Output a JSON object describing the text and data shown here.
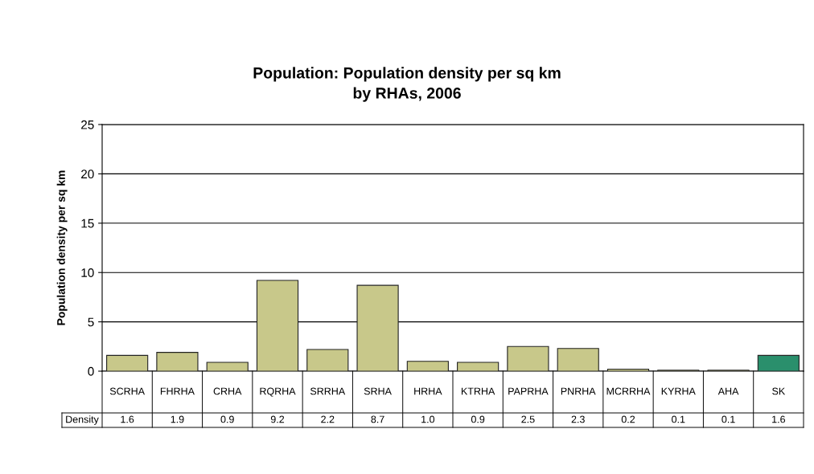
{
  "chart_data": {
    "type": "bar",
    "title": "Population: Population density per sq km\nby RHAs, 2006",
    "ylabel": "Population density per sq km",
    "categories": [
      "SCRHA",
      "FHRHA",
      "CRHA",
      "RQRHA",
      "SRRHA",
      "SRHA",
      "HRHA",
      "KTRHA",
      "PAPRHA",
      "PNRHA",
      "MCRRHA",
      "KYRHA",
      "AHA",
      "SK"
    ],
    "series": [
      {
        "name": "Density",
        "colors": [
          "#c8c88a",
          "#c8c88a",
          "#c8c88a",
          "#c8c88a",
          "#c8c88a",
          "#c8c88a",
          "#c8c88a",
          "#c8c88a",
          "#c8c88a",
          "#c8c88a",
          "#c8c88a",
          "#c8c88a",
          "#c8c88a",
          "#2a8f6c"
        ],
        "values": [
          1.6,
          1.9,
          0.9,
          9.2,
          2.2,
          8.7,
          1.0,
          0.9,
          2.5,
          2.3,
          0.2,
          0.1,
          0.1,
          1.6
        ],
        "value_labels": [
          "1.6",
          "1.9",
          "0.9",
          "9.2",
          "2.2",
          "8.7",
          "1.0",
          "0.9",
          "2.5",
          "2.3",
          "0.2",
          "0.1",
          "0.1",
          "1.6"
        ]
      }
    ],
    "ylim": [
      0,
      25
    ],
    "yticks": [
      0,
      5,
      10,
      15,
      20,
      25
    ],
    "grid": "y",
    "legend": false
  }
}
